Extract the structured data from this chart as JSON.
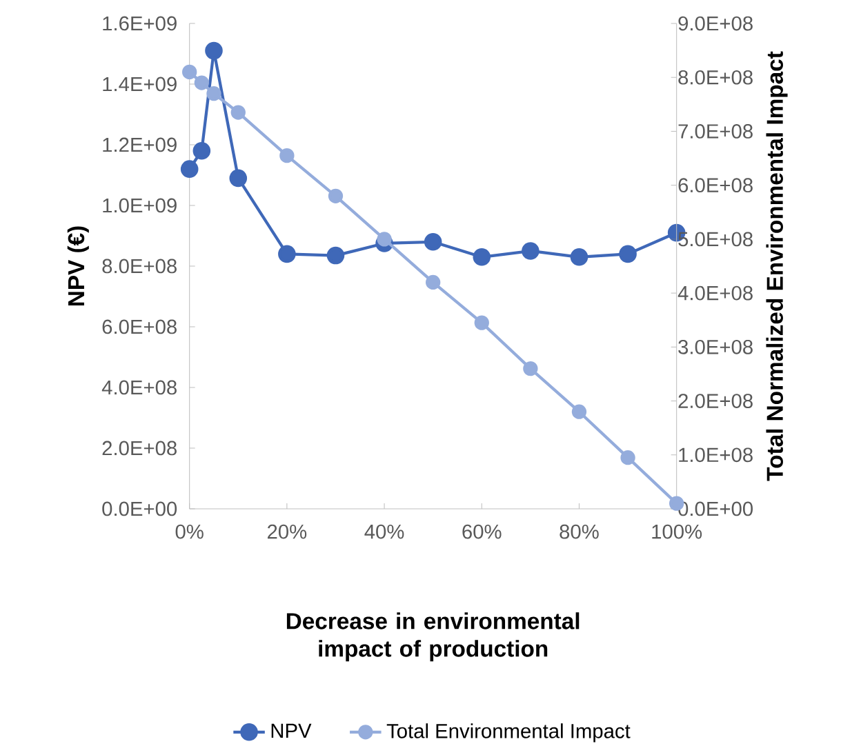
{
  "chart_data": {
    "type": "line",
    "xlabel": "Decrease in environmental impact of production",
    "ylabel": "NPV (€)",
    "y2label": "Total Normalized Environmental Impact",
    "x": [
      0,
      2.5,
      5,
      10,
      20,
      30,
      40,
      50,
      60,
      70,
      80,
      90,
      100
    ],
    "series": [
      {
        "name": "NPV",
        "color": "#3f68b8",
        "values": [
          1120000000.0,
          1180000000.0,
          1510000000.0,
          1090000000.0,
          840000000.0,
          835000000.0,
          875000000.0,
          880000000.0,
          830000000.0,
          850000000.0,
          830000000.0,
          840000000.0,
          910000000.0
        ]
      },
      {
        "name": "Total Environmental Impact",
        "color": "#94acdc",
        "axis": "y2",
        "values": [
          810000000.0,
          790000000.0,
          770000000.0,
          735000000.0,
          655000000.0,
          580000000.0,
          500000000.0,
          420000000.0,
          345000000.0,
          260000000.0,
          180000000.0,
          95000000.0,
          10000000.0
        ]
      }
    ],
    "xlim": [
      0,
      100
    ],
    "xticks": [
      {
        "value": 0,
        "label": "0%"
      },
      {
        "value": 20,
        "label": "20%"
      },
      {
        "value": 40,
        "label": "40%"
      },
      {
        "value": 60,
        "label": "60%"
      },
      {
        "value": 80,
        "label": "80%"
      },
      {
        "value": 100,
        "label": "100%"
      }
    ],
    "ylim": [
      0,
      1600000000.0
    ],
    "yticks": [
      {
        "value": 0,
        "label": "0.0E+00"
      },
      {
        "value": 200000000.0,
        "label": "2.0E+08"
      },
      {
        "value": 400000000.0,
        "label": "4.0E+08"
      },
      {
        "value": 600000000.0,
        "label": "6.0E+08"
      },
      {
        "value": 800000000.0,
        "label": "8.0E+08"
      },
      {
        "value": 1000000000.0,
        "label": "1.0E+09"
      },
      {
        "value": 1200000000.0,
        "label": "1.2E+09"
      },
      {
        "value": 1400000000.0,
        "label": "1.4E+09"
      },
      {
        "value": 1600000000.0,
        "label": "1.6E+09"
      }
    ],
    "y2lim": [
      0,
      900000000.0
    ],
    "y2ticks": [
      {
        "value": 0,
        "label": "0.0E+00"
      },
      {
        "value": 100000000.0,
        "label": "1.0E+08"
      },
      {
        "value": 200000000.0,
        "label": "2.0E+08"
      },
      {
        "value": 300000000.0,
        "label": "3.0E+08"
      },
      {
        "value": 400000000.0,
        "label": "4.0E+08"
      },
      {
        "value": 500000000.0,
        "label": "5.0E+08"
      },
      {
        "value": 600000000.0,
        "label": "6.0E+08"
      },
      {
        "value": 700000000.0,
        "label": "7.0E+08"
      },
      {
        "value": 800000000.0,
        "label": "8.0E+08"
      },
      {
        "value": 900000000.0,
        "label": "9.0E+08"
      }
    ],
    "legend": "bottom",
    "marker": "circle",
    "line_style": "solid"
  }
}
